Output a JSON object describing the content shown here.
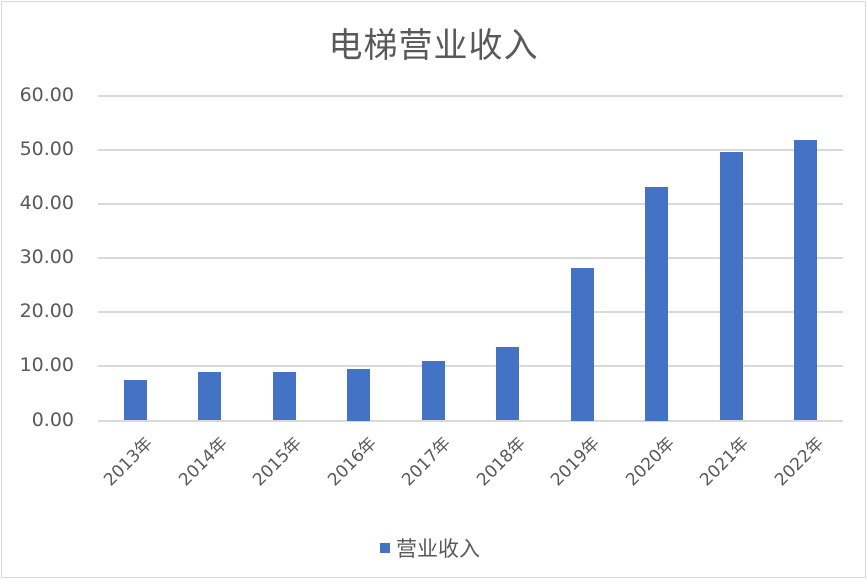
{
  "chart_data": {
    "type": "bar",
    "title": "电梯营业收入",
    "xlabel": "",
    "ylabel": "",
    "categories": [
      "2013年",
      "2014年",
      "2015年",
      "2016年",
      "2017年",
      "2018年",
      "2019年",
      "2020年",
      "2021年",
      "2022年"
    ],
    "series": [
      {
        "name": "营业收入",
        "color": "#4472c4",
        "values": [
          7.4,
          8.9,
          8.9,
          9.6,
          11.0,
          13.6,
          28.2,
          43.2,
          49.6,
          51.7
        ]
      }
    ],
    "ylim": [
      0,
      60
    ],
    "yticks": [
      "0.00",
      "10.00",
      "20.00",
      "30.00",
      "40.00",
      "50.00",
      "60.00"
    ],
    "grid": true,
    "legend_position": "bottom"
  },
  "colors": {
    "bar": "#4472c4",
    "grid": "#d9d9d9",
    "text": "#595959",
    "border": "#d9d9d9"
  }
}
